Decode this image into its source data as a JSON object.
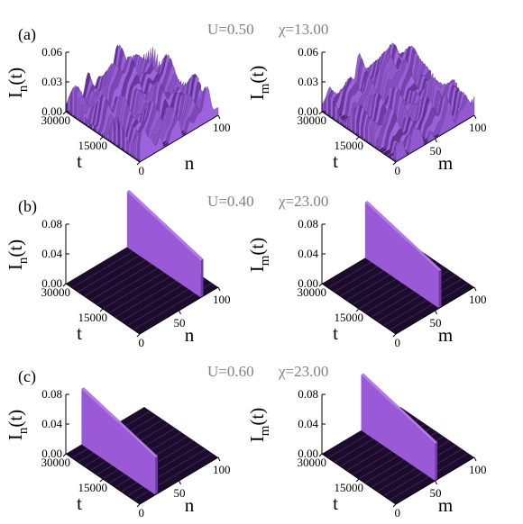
{
  "panels": [
    {
      "label": "(a)",
      "plots": [
        {
          "param": "U=0.50",
          "ylabel": {
            "main": "I",
            "sub": "n",
            "tail": "(t)"
          },
          "xlabel": "n",
          "tlabel": "t",
          "zticks": [
            "0.06",
            "0.03",
            "0.00"
          ],
          "tticks": [
            "30000",
            "15000",
            "0"
          ],
          "nticks": [
            "100"
          ]
        },
        {
          "param": "χ=13.00",
          "ylabel": {
            "main": "I",
            "sub": "m",
            "tail": "(t)"
          },
          "xlabel": "m",
          "tlabel": "t",
          "zticks": [
            "0.06",
            "0.03",
            "0.00"
          ],
          "tticks": [
            "30000",
            "15000",
            "0"
          ],
          "nticks": [
            "50",
            "100"
          ]
        }
      ]
    },
    {
      "label": "(b)",
      "plots": [
        {
          "param": "U=0.40",
          "ylabel": {
            "main": "I",
            "sub": "n",
            "tail": "(t)"
          },
          "xlabel": "n",
          "tlabel": "t",
          "zticks": [
            "0.08",
            "0.04",
            "0.00"
          ],
          "tticks": [
            "30000",
            "15000",
            "0"
          ],
          "nticks": [
            "50",
            "100"
          ]
        },
        {
          "param": "χ=23.00",
          "ylabel": {
            "main": "I",
            "sub": "m",
            "tail": "(t)"
          },
          "xlabel": "m",
          "tlabel": "t",
          "zticks": [
            "0.08",
            "0.04",
            "0.00"
          ],
          "tticks": [
            "30000",
            "15000",
            "0"
          ],
          "nticks": [
            "50",
            "100"
          ]
        }
      ]
    },
    {
      "label": "(c)",
      "plots": [
        {
          "param": "U=0.60",
          "ylabel": {
            "main": "I",
            "sub": "n",
            "tail": "(t)"
          },
          "xlabel": "n",
          "tlabel": "t",
          "zticks": [
            "0.08",
            "0.04",
            "0.00"
          ],
          "tticks": [
            "30000",
            "15000",
            "0"
          ],
          "nticks": [
            "50",
            "100"
          ]
        },
        {
          "param": "χ=23.00",
          "ylabel": {
            "main": "I",
            "sub": "m",
            "tail": "(t)"
          },
          "xlabel": "m",
          "tlabel": "t",
          "zticks": [
            "0.08",
            "0.04",
            "0.00"
          ],
          "tticks": [
            "30000",
            "15000",
            "0"
          ],
          "nticks": [
            "50",
            "100"
          ]
        }
      ]
    }
  ]
}
